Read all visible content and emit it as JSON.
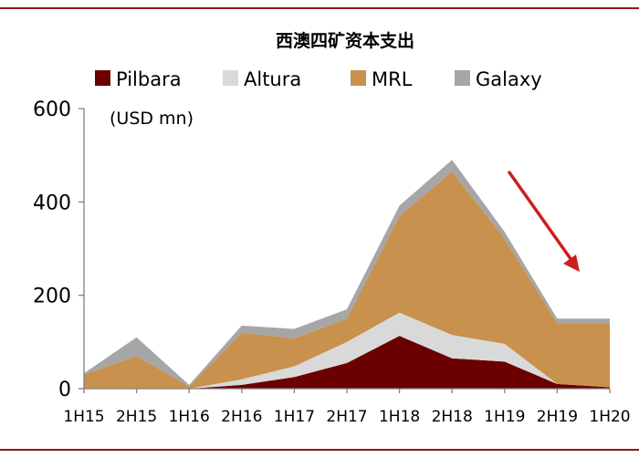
{
  "chart_data": {
    "type": "area",
    "stacked": true,
    "title": "西澳四矿资本支出",
    "unit": "(USD mn)",
    "categories": [
      "1H15",
      "2H15",
      "1H16",
      "2H16",
      "1H17",
      "2H17",
      "1H18",
      "2H18",
      "1H19",
      "2H19",
      "1H20"
    ],
    "ylim": [
      0,
      600
    ],
    "yticks": [
      0,
      200,
      400,
      600
    ],
    "legend_position": "top",
    "series": [
      {
        "name": "Pilbara",
        "color": "#6b0000",
        "values": [
          0,
          0,
          0,
          8,
          25,
          55,
          113,
          65,
          58,
          10,
          3
        ]
      },
      {
        "name": "Altura",
        "color": "#d9d9d9",
        "values": [
          0,
          0,
          0,
          12,
          23,
          45,
          50,
          50,
          38,
          0,
          0
        ]
      },
      {
        "name": "MRL",
        "color": "#c8914e",
        "values": [
          30,
          70,
          5,
          100,
          60,
          50,
          207,
          350,
          225,
          130,
          137
        ]
      },
      {
        "name": "Galaxy",
        "color": "#a6a6a6",
        "values": [
          3,
          40,
          3,
          15,
          20,
          20,
          22,
          25,
          15,
          10,
          10
        ]
      }
    ],
    "annotation": {
      "type": "arrow",
      "meaning": "decline",
      "color": "#cc1f1f"
    }
  }
}
